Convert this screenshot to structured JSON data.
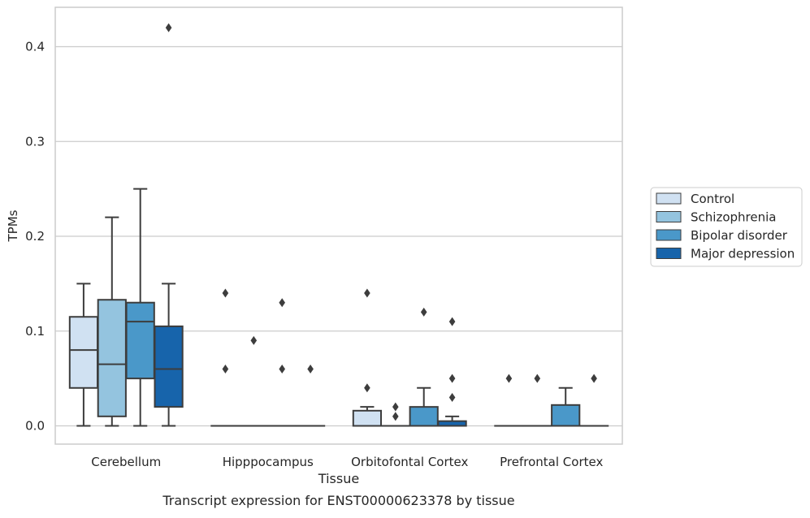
{
  "chart_data": {
    "type": "box",
    "title": "Transcript expression for ENST00000623378 by tissue",
    "xlabel": "Tissue",
    "ylabel": "TPMs",
    "ylim": [
      -0.02,
      0.44
    ],
    "yticks": [
      "0.0",
      "0.1",
      "0.2",
      "0.3",
      "0.4"
    ],
    "ytick_values": [
      0.0,
      0.1,
      0.2,
      0.3,
      0.4
    ],
    "categories": [
      "Cerebellum",
      "Hipppocampus",
      "Orbitofontal Cortex",
      "Prefrontal Cortex"
    ],
    "legend_position": "right, outside plot",
    "grid": "horizontal",
    "series": [
      {
        "name": "Control",
        "color": "#d0e1f2",
        "boxes": [
          {
            "whislo": 0.0,
            "q1": 0.04,
            "med": 0.08,
            "q3": 0.115,
            "whishi": 0.15,
            "fliers": []
          },
          {
            "whislo": 0.0,
            "q1": 0.0,
            "med": 0.0,
            "q3": 0.0,
            "whishi": 0.0,
            "fliers": [
              0.06,
              0.14
            ]
          },
          {
            "whislo": 0.0,
            "q1": 0.0,
            "med": 0.0,
            "q3": 0.016,
            "whishi": 0.02,
            "fliers": [
              0.04,
              0.14
            ]
          },
          {
            "whislo": 0.0,
            "q1": 0.0,
            "med": 0.0,
            "q3": 0.0,
            "whishi": 0.0,
            "fliers": [
              0.05
            ]
          }
        ]
      },
      {
        "name": "Schizophrenia",
        "color": "#94c4df",
        "boxes": [
          {
            "whislo": 0.0,
            "q1": 0.01,
            "med": 0.065,
            "q3": 0.133,
            "whishi": 0.22,
            "fliers": []
          },
          {
            "whislo": 0.0,
            "q1": 0.0,
            "med": 0.0,
            "q3": 0.0,
            "whishi": 0.0,
            "fliers": [
              0.09
            ]
          },
          {
            "whislo": 0.0,
            "q1": 0.0,
            "med": 0.0,
            "q3": 0.0,
            "whishi": 0.0,
            "fliers": [
              0.01,
              0.02
            ]
          },
          {
            "whislo": 0.0,
            "q1": 0.0,
            "med": 0.0,
            "q3": 0.0,
            "whishi": 0.0,
            "fliers": [
              0.05
            ]
          }
        ]
      },
      {
        "name": "Bipolar disorder",
        "color": "#4a98c9",
        "boxes": [
          {
            "whislo": 0.0,
            "q1": 0.05,
            "med": 0.11,
            "q3": 0.13,
            "whishi": 0.25,
            "fliers": []
          },
          {
            "whislo": 0.0,
            "q1": 0.0,
            "med": 0.0,
            "q3": 0.0,
            "whishi": 0.0,
            "fliers": [
              0.06,
              0.13
            ]
          },
          {
            "whislo": 0.0,
            "q1": 0.0,
            "med": 0.0,
            "q3": 0.02,
            "whishi": 0.04,
            "fliers": [
              0.12
            ]
          },
          {
            "whislo": 0.0,
            "q1": 0.0,
            "med": 0.0,
            "q3": 0.022,
            "whishi": 0.04,
            "fliers": []
          }
        ]
      },
      {
        "name": "Major depression",
        "color": "#1764ab",
        "boxes": [
          {
            "whislo": 0.0,
            "q1": 0.02,
            "med": 0.06,
            "q3": 0.105,
            "whishi": 0.15,
            "fliers": [
              0.42
            ]
          },
          {
            "whislo": 0.0,
            "q1": 0.0,
            "med": 0.0,
            "q3": 0.0,
            "whishi": 0.0,
            "fliers": [
              0.06
            ]
          },
          {
            "whislo": 0.0,
            "q1": 0.0,
            "med": 0.0,
            "q3": 0.005,
            "whishi": 0.01,
            "fliers": [
              0.03,
              0.05,
              0.11
            ]
          },
          {
            "whislo": 0.0,
            "q1": 0.0,
            "med": 0.0,
            "q3": 0.0,
            "whishi": 0.0,
            "fliers": [
              0.05
            ]
          }
        ]
      }
    ]
  }
}
